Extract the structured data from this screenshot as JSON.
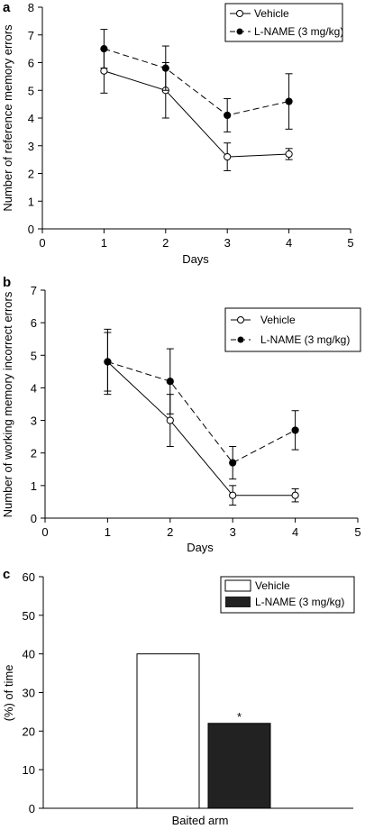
{
  "chart_data": [
    {
      "panel_label": "a",
      "type": "line",
      "xlabel": "Days",
      "ylabel": "Number of reference memory errors",
      "xlim": [
        0,
        5
      ],
      "ylim": [
        0,
        8
      ],
      "xticks": [
        "0",
        "1",
        "2",
        "3",
        "4",
        "5"
      ],
      "yticks": [
        "0",
        "1",
        "2",
        "3",
        "4",
        "5",
        "6",
        "7",
        "8"
      ],
      "x": [
        1,
        2,
        3,
        4
      ],
      "legend_position": "top-right",
      "series": [
        {
          "name": "Vehicle",
          "values": [
            5.7,
            5.0,
            2.6,
            2.7
          ],
          "errors": [
            0.8,
            1.0,
            0.5,
            0.2
          ],
          "marker": "open-circle",
          "line": "solid"
        },
        {
          "name": "L-NAME (3 mg/kg)",
          "values": [
            6.5,
            5.8,
            4.1,
            4.6
          ],
          "errors": [
            0.7,
            0.8,
            0.6,
            1.0
          ],
          "marker": "filled-circle",
          "line": "dashed"
        }
      ]
    },
    {
      "panel_label": "b",
      "type": "line",
      "xlabel": "Days",
      "ylabel": "Number of working memory incorrect errors",
      "xlim": [
        0,
        5
      ],
      "ylim": [
        0,
        7
      ],
      "xticks": [
        "0",
        "1",
        "2",
        "3",
        "4",
        "5"
      ],
      "yticks": [
        "0",
        "1",
        "2",
        "3",
        "4",
        "5",
        "6",
        "7"
      ],
      "x": [
        1,
        2,
        3,
        4
      ],
      "legend_position": "top-right",
      "series": [
        {
          "name": "Vehicle",
          "values": [
            4.8,
            3.0,
            0.7,
            0.7
          ],
          "errors": [
            0.9,
            0.8,
            0.3,
            0.2
          ],
          "marker": "open-circle",
          "line": "solid"
        },
        {
          "name": "L-NAME (3 mg/kg)",
          "values": [
            4.8,
            4.2,
            1.7,
            2.7
          ],
          "errors": [
            1.0,
            1.0,
            0.5,
            0.6
          ],
          "marker": "filled-circle",
          "line": "dashed"
        }
      ]
    },
    {
      "panel_label": "c",
      "type": "bar",
      "xlabel": "Baited arm",
      "ylabel": "(%) of time",
      "ylim": [
        0,
        60
      ],
      "yticks": [
        "0",
        "10",
        "20",
        "30",
        "40",
        "50",
        "60"
      ],
      "categories": [
        "Baited arm"
      ],
      "legend_position": "top-right",
      "series": [
        {
          "name": "Vehicle",
          "values": [
            40
          ],
          "color": "#ffffff"
        },
        {
          "name": "L-NAME (3 mg/kg)",
          "values": [
            22
          ],
          "color": "#222222"
        }
      ],
      "annotations": [
        {
          "series": 1,
          "text": "*"
        }
      ]
    }
  ]
}
